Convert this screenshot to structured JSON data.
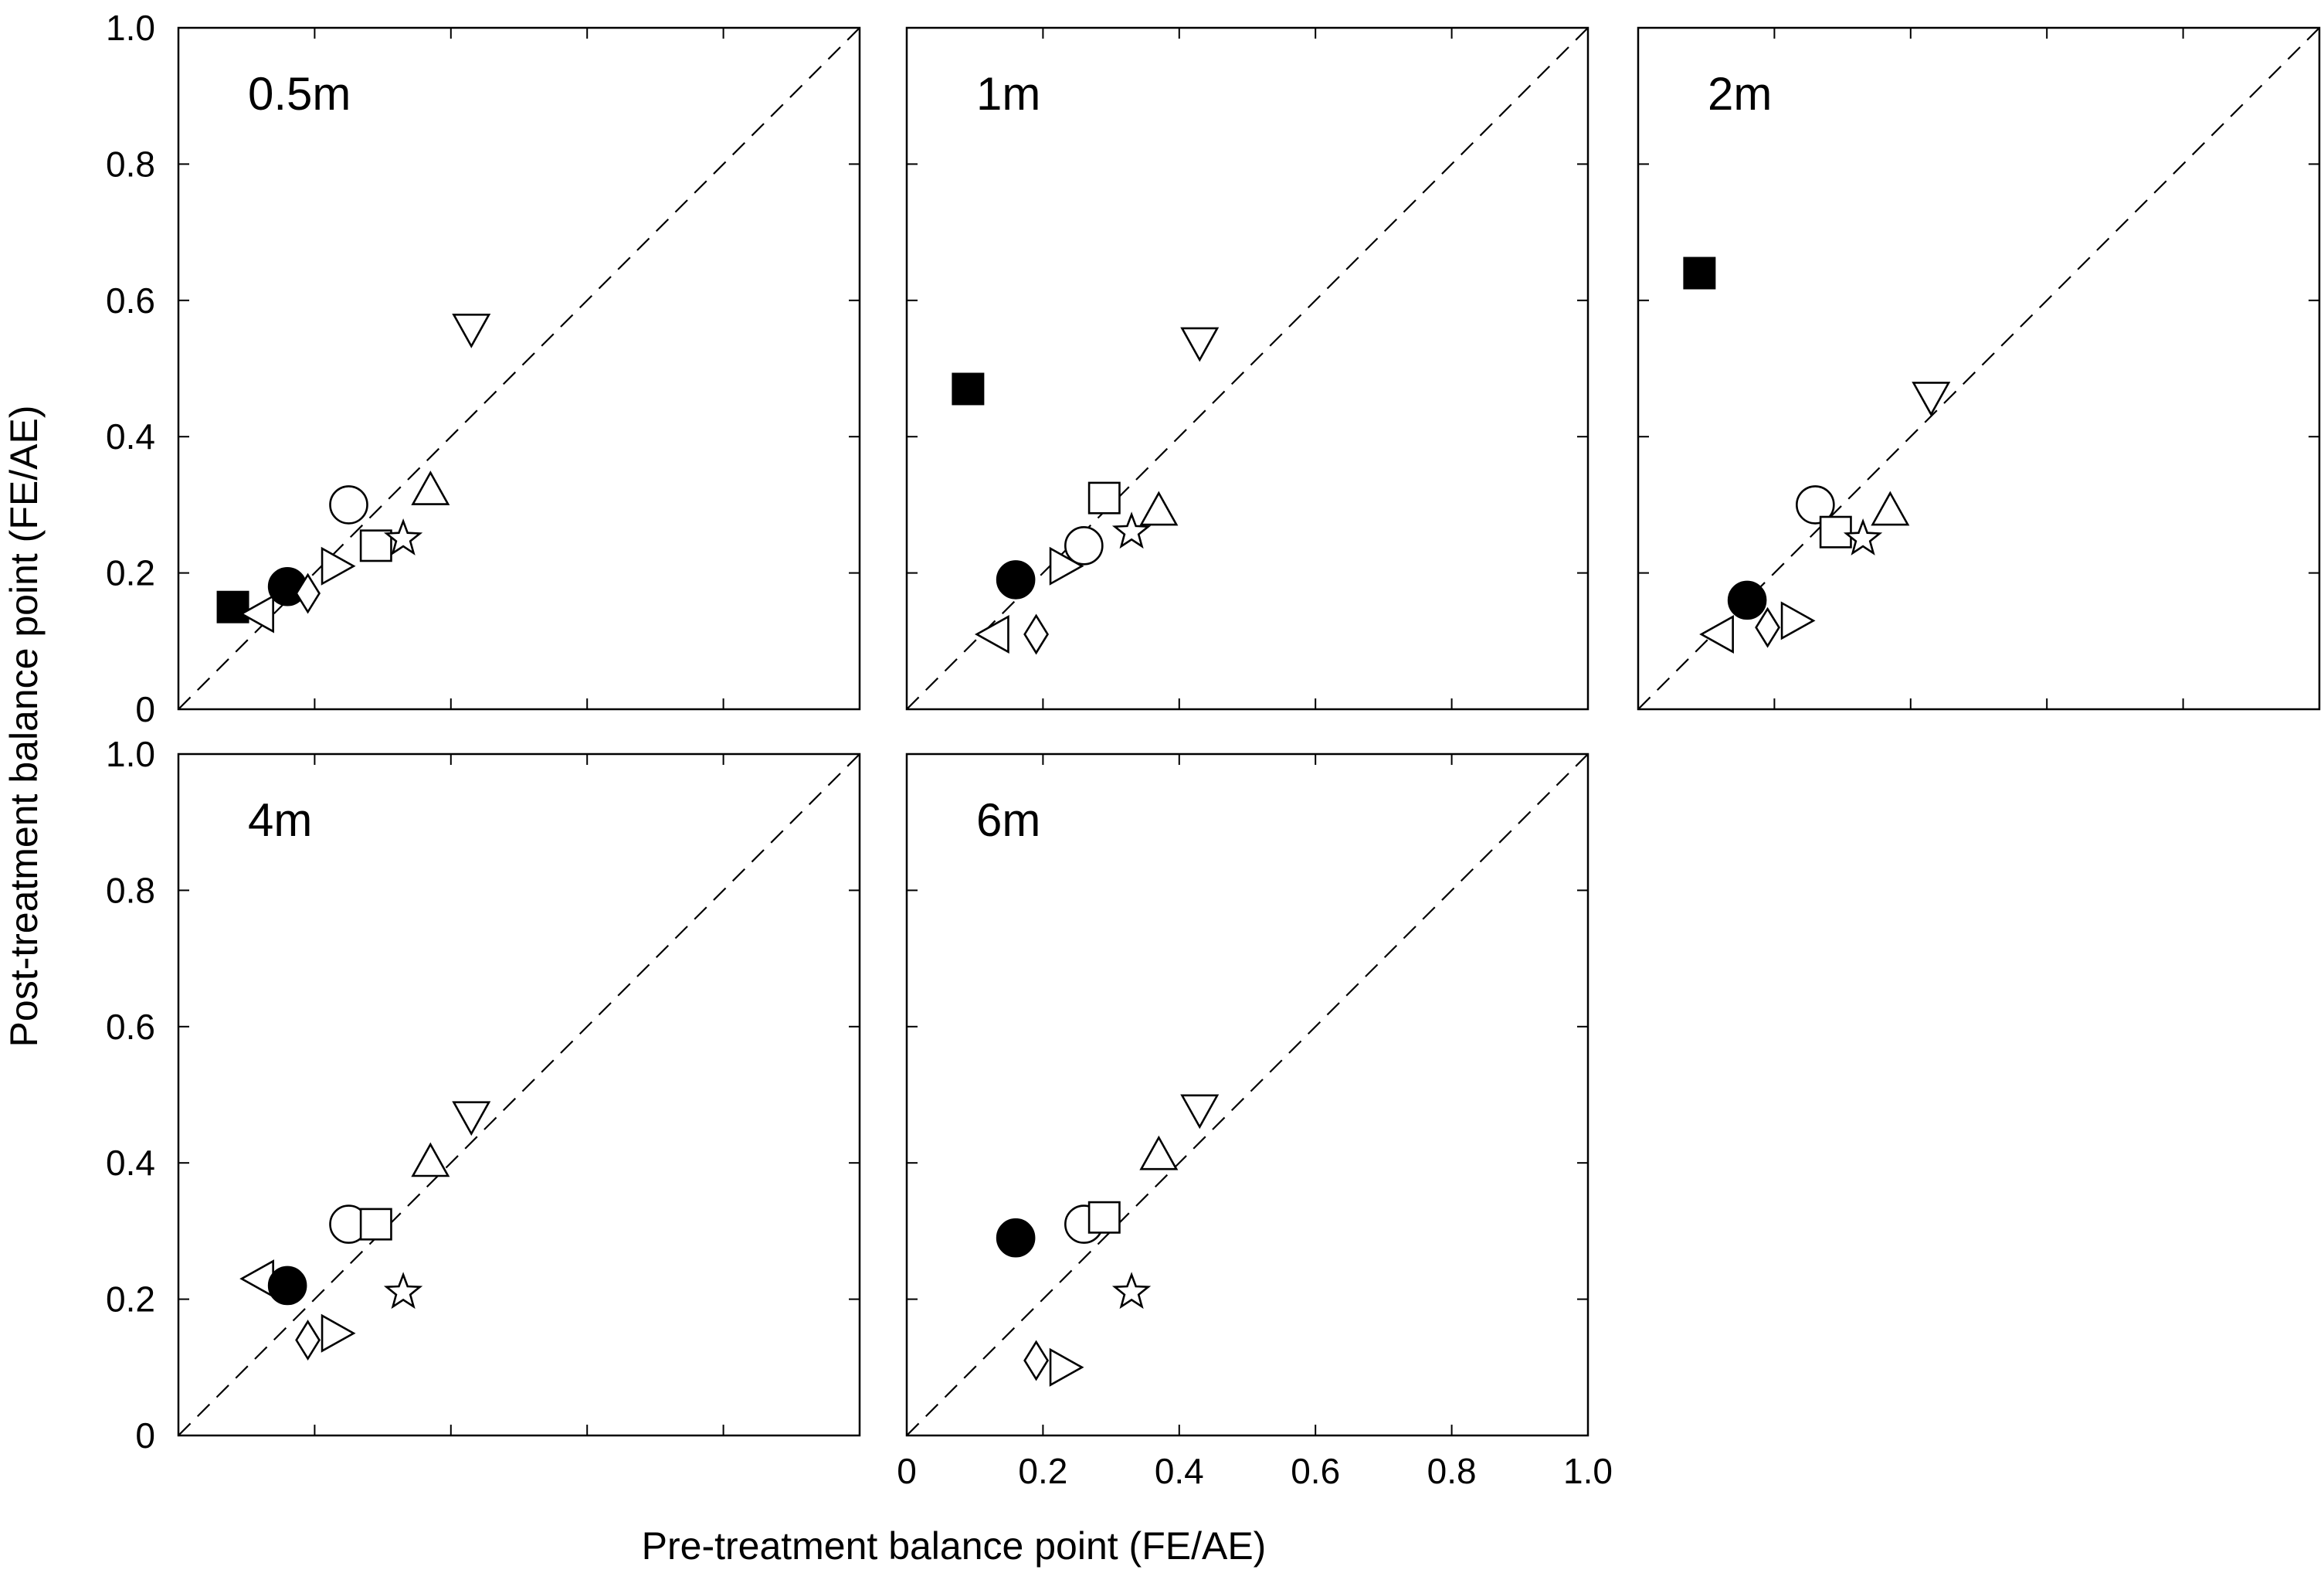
{
  "chart_data": [
    {
      "type": "scatter",
      "title": "0.5m",
      "xlim": [
        0,
        1
      ],
      "ylim": [
        0,
        1
      ],
      "reference_line": "y = x (dashed)",
      "points": [
        {
          "marker": "square-filled",
          "x": 0.08,
          "y": 0.15
        },
        {
          "marker": "triangle-left",
          "x": 0.12,
          "y": 0.14
        },
        {
          "marker": "circle-filled",
          "x": 0.16,
          "y": 0.18
        },
        {
          "marker": "diamond",
          "x": 0.19,
          "y": 0.17
        },
        {
          "marker": "triangle-right",
          "x": 0.23,
          "y": 0.21
        },
        {
          "marker": "circle",
          "x": 0.25,
          "y": 0.3
        },
        {
          "marker": "square",
          "x": 0.29,
          "y": 0.24
        },
        {
          "marker": "star",
          "x": 0.33,
          "y": 0.25
        },
        {
          "marker": "triangle-up",
          "x": 0.37,
          "y": 0.32
        },
        {
          "marker": "triangle-down",
          "x": 0.43,
          "y": 0.56
        }
      ]
    },
    {
      "type": "scatter",
      "title": "1m",
      "xlim": [
        0,
        1
      ],
      "ylim": [
        0,
        1
      ],
      "reference_line": "y = x (dashed)",
      "points": [
        {
          "marker": "square-filled",
          "x": 0.09,
          "y": 0.47
        },
        {
          "marker": "triangle-left",
          "x": 0.13,
          "y": 0.11
        },
        {
          "marker": "circle-filled",
          "x": 0.16,
          "y": 0.19
        },
        {
          "marker": "diamond",
          "x": 0.19,
          "y": 0.11
        },
        {
          "marker": "triangle-right",
          "x": 0.23,
          "y": 0.21
        },
        {
          "marker": "circle",
          "x": 0.26,
          "y": 0.24
        },
        {
          "marker": "square",
          "x": 0.29,
          "y": 0.31
        },
        {
          "marker": "star",
          "x": 0.33,
          "y": 0.26
        },
        {
          "marker": "triangle-up",
          "x": 0.37,
          "y": 0.29
        },
        {
          "marker": "triangle-down",
          "x": 0.43,
          "y": 0.54
        }
      ]
    },
    {
      "type": "scatter",
      "title": "2m",
      "xlim": [
        0,
        1
      ],
      "ylim": [
        0,
        1
      ],
      "reference_line": "y = x (dashed)",
      "points": [
        {
          "marker": "square-filled",
          "x": 0.09,
          "y": 0.64
        },
        {
          "marker": "triangle-left",
          "x": 0.12,
          "y": 0.11
        },
        {
          "marker": "circle-filled",
          "x": 0.16,
          "y": 0.16
        },
        {
          "marker": "diamond",
          "x": 0.19,
          "y": 0.12
        },
        {
          "marker": "triangle-right",
          "x": 0.23,
          "y": 0.13
        },
        {
          "marker": "circle",
          "x": 0.26,
          "y": 0.3
        },
        {
          "marker": "square",
          "x": 0.29,
          "y": 0.26
        },
        {
          "marker": "star",
          "x": 0.33,
          "y": 0.25
        },
        {
          "marker": "triangle-up",
          "x": 0.37,
          "y": 0.29
        },
        {
          "marker": "triangle-down",
          "x": 0.43,
          "y": 0.46
        }
      ]
    },
    {
      "type": "scatter",
      "title": "4m",
      "xlim": [
        0,
        1
      ],
      "ylim": [
        0,
        1
      ],
      "reference_line": "y = x (dashed)",
      "points": [
        {
          "marker": "triangle-left",
          "x": 0.12,
          "y": 0.23
        },
        {
          "marker": "circle-filled",
          "x": 0.16,
          "y": 0.22
        },
        {
          "marker": "diamond",
          "x": 0.19,
          "y": 0.14
        },
        {
          "marker": "triangle-right",
          "x": 0.23,
          "y": 0.15
        },
        {
          "marker": "circle",
          "x": 0.25,
          "y": 0.31
        },
        {
          "marker": "square",
          "x": 0.29,
          "y": 0.31
        },
        {
          "marker": "star",
          "x": 0.33,
          "y": 0.21
        },
        {
          "marker": "triangle-up",
          "x": 0.37,
          "y": 0.4
        },
        {
          "marker": "triangle-down",
          "x": 0.43,
          "y": 0.47
        }
      ]
    },
    {
      "type": "scatter",
      "title": "6m",
      "xlim": [
        0,
        1
      ],
      "ylim": [
        0,
        1
      ],
      "reference_line": "y = x (dashed)",
      "points": [
        {
          "marker": "circle-filled",
          "x": 0.16,
          "y": 0.29
        },
        {
          "marker": "diamond",
          "x": 0.19,
          "y": 0.11
        },
        {
          "marker": "triangle-right",
          "x": 0.23,
          "y": 0.1
        },
        {
          "marker": "circle",
          "x": 0.26,
          "y": 0.31
        },
        {
          "marker": "square",
          "x": 0.29,
          "y": 0.32
        },
        {
          "marker": "star",
          "x": 0.33,
          "y": 0.21
        },
        {
          "marker": "triangle-up",
          "x": 0.37,
          "y": 0.41
        },
        {
          "marker": "triangle-down",
          "x": 0.43,
          "y": 0.48
        }
      ]
    }
  ],
  "axes": {
    "xlabel": "Pre-treatment balance point (FE/AE)",
    "ylabel": "Post-treatment balance point (FE/AE)",
    "x_ticks": [
      "0",
      "0.2",
      "0.4",
      "0.6",
      "0.8",
      "1.0"
    ],
    "y_ticks": [
      "0",
      "0.2",
      "0.4",
      "0.6",
      "0.8",
      "1.0"
    ]
  }
}
